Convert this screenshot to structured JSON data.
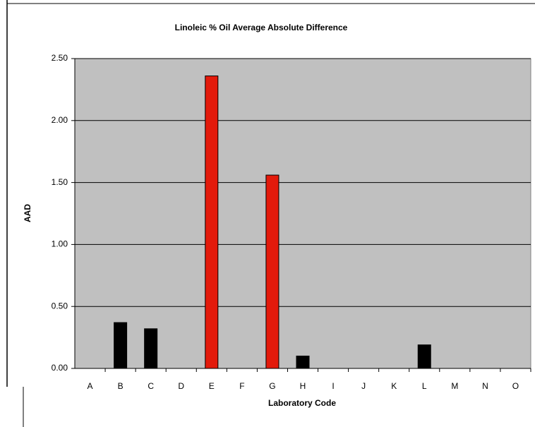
{
  "chart_data": {
    "type": "bar",
    "title": "Linoleic % Oil Average Absolute Difference",
    "x_label": "Laboratory Code",
    "y_label": "AAD",
    "categories": [
      "A",
      "B",
      "C",
      "D",
      "E",
      "F",
      "G",
      "H",
      "I",
      "J",
      "K",
      "L",
      "M",
      "N",
      "O"
    ],
    "values": [
      0,
      0.37,
      0.32,
      0,
      2.36,
      0,
      1.56,
      0.1,
      0,
      0,
      0,
      0.19,
      0,
      0,
      0
    ],
    "colors": [
      "#000000",
      "#000000",
      "#000000",
      "#000000",
      "#e31a0b",
      "#000000",
      "#e31a0b",
      "#000000",
      "#000000",
      "#000000",
      "#000000",
      "#000000",
      "#000000",
      "#000000",
      "#000000"
    ],
    "ylim": [
      0,
      2.5
    ],
    "yticks": [
      {
        "value": 0,
        "label": "0.00"
      },
      {
        "value": 0.5,
        "label": "0.50"
      },
      {
        "value": 1,
        "label": "1.00"
      },
      {
        "value": 1.5,
        "label": "1.50"
      },
      {
        "value": 2,
        "label": "2.00"
      },
      {
        "value": 2.5,
        "label": "2.50"
      }
    ],
    "grid": true,
    "plot_background": "#c0c0c0"
  }
}
